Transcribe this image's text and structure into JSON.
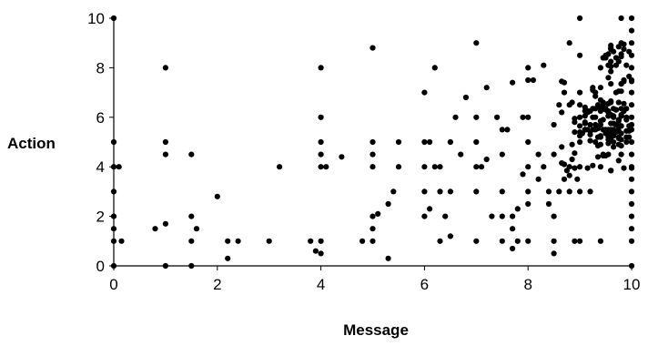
{
  "chart_data": {
    "type": "scatter",
    "title": "",
    "xlabel": "Message",
    "ylabel": "Action",
    "xlim": [
      0,
      10
    ],
    "ylim": [
      0,
      10
    ],
    "xticks": [
      "0",
      "2",
      "4",
      "6",
      "8",
      "10"
    ],
    "yticks": [
      "0",
      "2",
      "4",
      "6",
      "8",
      "10"
    ],
    "grid": false,
    "legend": "none",
    "marker_color": "#000000",
    "series": [
      {
        "points": [
          [
            0,
            10
          ],
          [
            0,
            5
          ],
          [
            0,
            4
          ],
          [
            0.1,
            4
          ],
          [
            0,
            3
          ],
          [
            0,
            2
          ],
          [
            0,
            1.5
          ],
          [
            0,
            1
          ],
          [
            0.15,
            1
          ],
          [
            0,
            0
          ],
          [
            1,
            8
          ],
          [
            1,
            5
          ],
          [
            1,
            4.5
          ],
          [
            1,
            1.7
          ],
          [
            1,
            0
          ],
          [
            0.8,
            1.5
          ],
          [
            1.5,
            4.5
          ],
          [
            1.5,
            2
          ],
          [
            1.6,
            1.5
          ],
          [
            1.5,
            1
          ],
          [
            1.5,
            0
          ],
          [
            2,
            2.8
          ],
          [
            2.2,
            1
          ],
          [
            2.4,
            1
          ],
          [
            2.2,
            0.3
          ],
          [
            3,
            1
          ],
          [
            3.2,
            4
          ],
          [
            4,
            8
          ],
          [
            4,
            6
          ],
          [
            4,
            5
          ],
          [
            4,
            4.5
          ],
          [
            4,
            4
          ],
          [
            4.1,
            4
          ],
          [
            4,
            1
          ],
          [
            3.9,
            0.6
          ],
          [
            3.8,
            1
          ],
          [
            4,
            0.5
          ],
          [
            4.4,
            4.4
          ],
          [
            5,
            8.8
          ],
          [
            5,
            5
          ],
          [
            5,
            4.5
          ],
          [
            5,
            4
          ],
          [
            5,
            2
          ],
          [
            5.1,
            2.1
          ],
          [
            5,
            1.5
          ],
          [
            4.8,
            1
          ],
          [
            5,
            1
          ],
          [
            5.3,
            0.3
          ],
          [
            5.5,
            5
          ],
          [
            5.5,
            4
          ],
          [
            5.4,
            3
          ],
          [
            5.3,
            2.5
          ],
          [
            6,
            7
          ],
          [
            6,
            5
          ],
          [
            6.1,
            5
          ],
          [
            6,
            4
          ],
          [
            6,
            3
          ],
          [
            6.1,
            2.3
          ],
          [
            6,
            2
          ],
          [
            6.2,
            4
          ],
          [
            6.2,
            8
          ],
          [
            6.3,
            4
          ],
          [
            6.3,
            3
          ],
          [
            6.4,
            2
          ],
          [
            6.5,
            3
          ],
          [
            6.5,
            1.2
          ],
          [
            6.3,
            1
          ],
          [
            6.6,
            6
          ],
          [
            6.5,
            5
          ],
          [
            6.7,
            4.5
          ],
          [
            6.8,
            6.8
          ],
          [
            7,
            9
          ],
          [
            7,
            6
          ],
          [
            7,
            5
          ],
          [
            7,
            4
          ],
          [
            7.1,
            4
          ],
          [
            7,
            3
          ],
          [
            7,
            1
          ],
          [
            7.2,
            7.2
          ],
          [
            7.2,
            4.3
          ],
          [
            7.3,
            2
          ],
          [
            7.4,
            6
          ],
          [
            7.5,
            5.5
          ],
          [
            7.5,
            4.5
          ],
          [
            7.5,
            3
          ],
          [
            7.5,
            1
          ],
          [
            7.5,
            2
          ],
          [
            7.6,
            5.5
          ],
          [
            7.7,
            7.4
          ],
          [
            7.7,
            2
          ],
          [
            7.7,
            1.5
          ],
          [
            7.8,
            2.3
          ],
          [
            7.8,
            1
          ],
          [
            7.7,
            0.7
          ],
          [
            7.9,
            6
          ],
          [
            7.9,
            3.7
          ],
          [
            8,
            8
          ],
          [
            8,
            7.5
          ],
          [
            8,
            6
          ],
          [
            8,
            5
          ],
          [
            8,
            4
          ],
          [
            8,
            3
          ],
          [
            8,
            2.5
          ],
          [
            8,
            1
          ],
          [
            8.1,
            7.5
          ],
          [
            8.2,
            4.5
          ],
          [
            8.2,
            3.5
          ],
          [
            8.3,
            8.1
          ],
          [
            8.3,
            4
          ],
          [
            8.4,
            3
          ],
          [
            8.4,
            2.5
          ],
          [
            8.5,
            5.7
          ],
          [
            8.5,
            4.5
          ],
          [
            8.5,
            2
          ],
          [
            8.5,
            1
          ],
          [
            8.5,
            0.5
          ],
          [
            8.6,
            6.5
          ],
          [
            8.6,
            3
          ],
          [
            8.7,
            7
          ],
          [
            8.7,
            3.5
          ],
          [
            8.8,
            9
          ],
          [
            8.8,
            6.5
          ],
          [
            8.8,
            4
          ],
          [
            8.8,
            3
          ],
          [
            8.9,
            1
          ],
          [
            9,
            10
          ],
          [
            9,
            8.5
          ],
          [
            9,
            7
          ],
          [
            9,
            6
          ],
          [
            9,
            5
          ],
          [
            9,
            4
          ],
          [
            9,
            3
          ],
          [
            9,
            1
          ],
          [
            9.1,
            5.5
          ],
          [
            9.2,
            3
          ],
          [
            9.3,
            7
          ],
          [
            9.3,
            6
          ],
          [
            9.3,
            5
          ],
          [
            9.4,
            8
          ],
          [
            9.4,
            4
          ],
          [
            9.4,
            1
          ],
          [
            9.5,
            8.5
          ],
          [
            9.5,
            5.5
          ],
          [
            9.6,
            8.8
          ],
          [
            9.7,
            7
          ],
          [
            9.8,
            9
          ],
          [
            9.8,
            10
          ],
          [
            9.9,
            6
          ],
          [
            9.9,
            5
          ],
          [
            10,
            10
          ],
          [
            10,
            9.5
          ],
          [
            10,
            9
          ],
          [
            10,
            8.5
          ],
          [
            10,
            8
          ],
          [
            10,
            7.5
          ],
          [
            10,
            7
          ],
          [
            10,
            6.5
          ],
          [
            10,
            6
          ],
          [
            10,
            5.5
          ],
          [
            10,
            5
          ],
          [
            10,
            4.5
          ],
          [
            10,
            4
          ],
          [
            10,
            3.5
          ],
          [
            10,
            3
          ],
          [
            10,
            2.5
          ],
          [
            10,
            2
          ],
          [
            10,
            1.5
          ],
          [
            10,
            1
          ],
          [
            10,
            0
          ]
        ],
        "clusters": [
          {
            "x_range": [
              8.9,
              10
            ],
            "y_range": [
              4.8,
              6.6
            ],
            "count": 60
          },
          {
            "x_range": [
              9.4,
              10
            ],
            "y_range": [
              3.8,
              9.0
            ],
            "count": 70
          },
          {
            "x_range": [
              8.6,
              9.6
            ],
            "y_range": [
              3.5,
              7.5
            ],
            "count": 40
          }
        ]
      }
    ]
  }
}
